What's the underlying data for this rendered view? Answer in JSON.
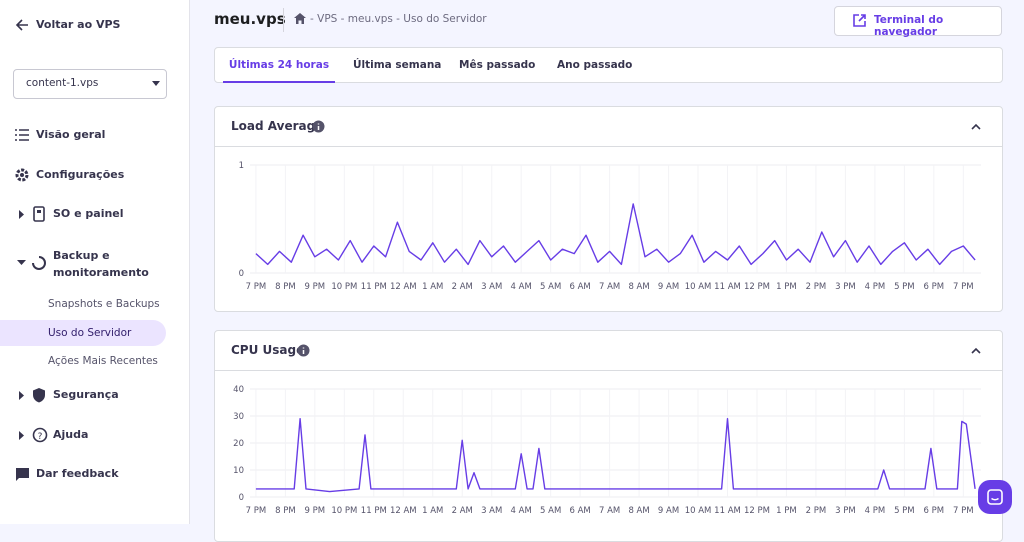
{
  "sidebar": {
    "back": "Voltar ao VPS",
    "select": "content-1.vps",
    "items": [
      "Visão geral",
      "Configurações",
      "SO e painel",
      "Backup e monitoramento"
    ],
    "subitems": [
      "Snapshots e Backups",
      "Uso do Servidor",
      "Ações Mais Recentes"
    ],
    "more_items": [
      "Segurança",
      "Ajuda",
      "Dar feedback"
    ]
  },
  "header": {
    "title": "meu.vps",
    "breadcrumb": [
      "VPS",
      "meu.vps",
      "Uso do Servidor"
    ],
    "button": "Terminal do navegador"
  },
  "tabs": [
    "Últimas 24 horas",
    "Última semana",
    "Mês passado",
    "Ano passado"
  ],
  "chart_data": [
    {
      "type": "line",
      "title": "Load Average",
      "color": "#673de6",
      "grid": true,
      "x": [
        0,
        0.4,
        0.8,
        1.2,
        1.6,
        2,
        2.4,
        2.8,
        3.2,
        3.6,
        4,
        4.4,
        4.8,
        5.2,
        5.6,
        6,
        6.4,
        6.8,
        7.2,
        7.6,
        8,
        8.4,
        8.8,
        9.2,
        9.6,
        10,
        10.4,
        10.8,
        11.2,
        11.6,
        12,
        12.4,
        12.8,
        13.2,
        13.6,
        14,
        14.4,
        14.8,
        15.2,
        15.6,
        16,
        16.4,
        16.8,
        17.2,
        17.6,
        18,
        18.4,
        18.8,
        19.2,
        19.6,
        20,
        20.4,
        20.8,
        21.2,
        21.6,
        22,
        22.4,
        22.8,
        23.2,
        23.6,
        24,
        24.4
      ],
      "values": [
        0.18,
        0.08,
        0.2,
        0.1,
        0.35,
        0.15,
        0.22,
        0.12,
        0.3,
        0.1,
        0.25,
        0.15,
        0.47,
        0.2,
        0.12,
        0.28,
        0.1,
        0.22,
        0.08,
        0.3,
        0.15,
        0.25,
        0.1,
        0.2,
        0.3,
        0.12,
        0.22,
        0.18,
        0.35,
        0.1,
        0.2,
        0.08,
        0.64,
        0.15,
        0.22,
        0.1,
        0.18,
        0.35,
        0.1,
        0.2,
        0.12,
        0.25,
        0.08,
        0.18,
        0.3,
        0.12,
        0.22,
        0.1,
        0.38,
        0.15,
        0.3,
        0.1,
        0.25,
        0.08,
        0.2,
        0.28,
        0.12,
        0.22,
        0.08,
        0.2,
        0.25,
        0.12
      ],
      "xlim": [
        -0.2,
        24.6
      ],
      "xticks": [
        {
          "value": 0,
          "label": "7 PM"
        },
        {
          "value": 1,
          "label": "8 PM"
        },
        {
          "value": 2,
          "label": "9 PM"
        },
        {
          "value": 3,
          "label": "10 PM"
        },
        {
          "value": 4,
          "label": "11 PM"
        },
        {
          "value": 5,
          "label": "12 AM"
        },
        {
          "value": 6,
          "label": "1 AM"
        },
        {
          "value": 7,
          "label": "2 AM"
        },
        {
          "value": 8,
          "label": "3 AM"
        },
        {
          "value": 9,
          "label": "4 AM"
        },
        {
          "value": 10,
          "label": "5 AM"
        },
        {
          "value": 11,
          "label": "6 AM"
        },
        {
          "value": 12,
          "label": "7 AM"
        },
        {
          "value": 13,
          "label": "8 AM"
        },
        {
          "value": 14,
          "label": "9 AM"
        },
        {
          "value": 15,
          "label": "10 AM"
        },
        {
          "value": 16,
          "label": "11 AM"
        },
        {
          "value": 17,
          "label": "12 PM"
        },
        {
          "value": 18,
          "label": "1 PM"
        },
        {
          "value": 19,
          "label": "2 PM"
        },
        {
          "value": 20,
          "label": "3 PM"
        },
        {
          "value": 21,
          "label": "4 PM"
        },
        {
          "value": 22,
          "label": "5 PM"
        },
        {
          "value": 23,
          "label": "6 PM"
        },
        {
          "value": 24,
          "label": "7 PM"
        }
      ],
      "ylim": [
        0,
        1
      ],
      "yticks": [
        0,
        1
      ]
    },
    {
      "type": "line",
      "title": "CPU Usage",
      "color": "#673de6",
      "grid": true,
      "x": [
        0,
        1,
        1.3,
        1.5,
        1.7,
        2.5,
        3.5,
        3.7,
        3.9,
        6.8,
        7.0,
        7.2,
        7.4,
        7.6,
        8.8,
        9.0,
        9.2,
        9.4,
        9.6,
        9.8,
        11,
        13,
        15.8,
        16.0,
        16.2,
        18,
        21.1,
        21.3,
        21.5,
        22.7,
        22.9,
        23.1,
        23.8,
        23.95,
        24.1,
        24.4
      ],
      "values": [
        3,
        3,
        3,
        29,
        3,
        2,
        3,
        23,
        3,
        3,
        21,
        3,
        9,
        3,
        3,
        16,
        3,
        3,
        18,
        3,
        3,
        3,
        3,
        29,
        3,
        3,
        3,
        10,
        3,
        3,
        18,
        3,
        3,
        28,
        27,
        3
      ],
      "xlim": [
        -0.2,
        24.6
      ],
      "xticks": [
        {
          "value": 0,
          "label": "7 PM"
        },
        {
          "value": 1,
          "label": "8 PM"
        },
        {
          "value": 2,
          "label": "9 PM"
        },
        {
          "value": 3,
          "label": "10 PM"
        },
        {
          "value": 4,
          "label": "11 PM"
        },
        {
          "value": 5,
          "label": "12 AM"
        },
        {
          "value": 6,
          "label": "1 AM"
        },
        {
          "value": 7,
          "label": "2 AM"
        },
        {
          "value": 8,
          "label": "3 AM"
        },
        {
          "value": 9,
          "label": "4 AM"
        },
        {
          "value": 10,
          "label": "5 AM"
        },
        {
          "value": 11,
          "label": "6 AM"
        },
        {
          "value": 12,
          "label": "7 AM"
        },
        {
          "value": 13,
          "label": "8 AM"
        },
        {
          "value": 14,
          "label": "9 AM"
        },
        {
          "value": 15,
          "label": "10 AM"
        },
        {
          "value": 16,
          "label": "11 AM"
        },
        {
          "value": 17,
          "label": "12 PM"
        },
        {
          "value": 18,
          "label": "1 PM"
        },
        {
          "value": 19,
          "label": "2 PM"
        },
        {
          "value": 20,
          "label": "3 PM"
        },
        {
          "value": 21,
          "label": "4 PM"
        },
        {
          "value": 22,
          "label": "5 PM"
        },
        {
          "value": 23,
          "label": "6 PM"
        },
        {
          "value": 24,
          "label": "7 PM"
        }
      ],
      "ylim": [
        0,
        40
      ],
      "yticks": [
        0,
        10,
        20,
        30,
        40
      ]
    }
  ]
}
